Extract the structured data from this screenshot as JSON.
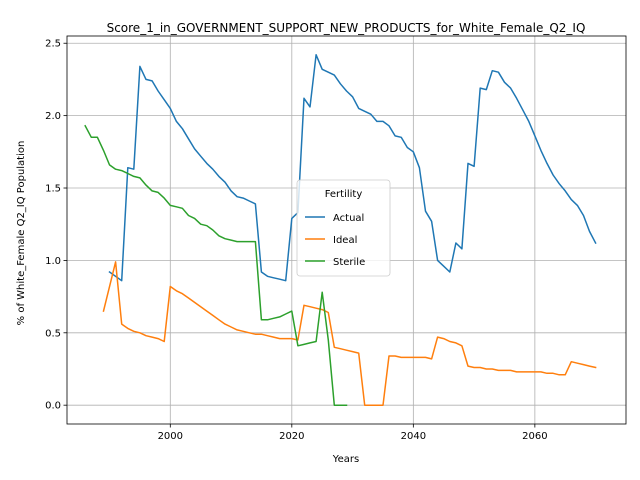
{
  "chart_data": {
    "type": "line",
    "title": "Score_1_in_GOVERNMENT_SUPPORT_NEW_PRODUCTS_for_White_Female_Q2_IQ",
    "xlabel": "Years",
    "ylabel": "% of White_Female Q2_IQ Population",
    "xlim": [
      1983,
      2075
    ],
    "ylim": [
      -0.13,
      2.55
    ],
    "xticks": [
      2000,
      2020,
      2040,
      2060
    ],
    "yticks": [
      0.0,
      0.5,
      1.0,
      1.5,
      2.0,
      2.5
    ],
    "xtick_labels": [
      "2000",
      "2020",
      "2040",
      "2060"
    ],
    "ytick_labels": [
      "0.0",
      "0.5",
      "1.0",
      "1.5",
      "2.0",
      "2.5"
    ],
    "grid": true,
    "legend": {
      "title": "Fertility",
      "placement": "center-right"
    },
    "series": [
      {
        "name": "Actual",
        "color": "#1f77b4",
        "x": [
          1990,
          1992,
          1993,
          1994,
          1995,
          1996,
          1997,
          1998,
          1999,
          2000,
          2001,
          2002,
          2003,
          2004,
          2005,
          2006,
          2007,
          2008,
          2009,
          2010,
          2011,
          2012,
          2013,
          2014,
          2015,
          2016,
          2017,
          2018,
          2019,
          2020,
          2021,
          2022,
          2023,
          2024,
          2025,
          2026,
          2027,
          2028,
          2029,
          2030,
          2031,
          2032,
          2033,
          2034,
          2035,
          2036,
          2037,
          2038,
          2039,
          2040,
          2041,
          2042,
          2043,
          2044,
          2045,
          2046,
          2047,
          2048,
          2049,
          2050,
          2051,
          2052,
          2053,
          2054,
          2055,
          2056,
          2057,
          2058,
          2059,
          2060,
          2061,
          2062,
          2063,
          2064,
          2065,
          2066,
          2067,
          2068,
          2069,
          2070
        ],
        "y": [
          0.92,
          0.86,
          1.64,
          1.63,
          2.34,
          2.25,
          2.24,
          2.17,
          2.11,
          2.05,
          1.96,
          1.91,
          1.84,
          1.77,
          1.72,
          1.67,
          1.63,
          1.58,
          1.54,
          1.48,
          1.44,
          1.43,
          1.41,
          1.39,
          0.92,
          0.89,
          0.88,
          0.87,
          0.86,
          1.29,
          1.33,
          2.12,
          2.06,
          2.42,
          2.32,
          2.3,
          2.28,
          2.22,
          2.17,
          2.13,
          2.05,
          2.03,
          2.01,
          1.96,
          1.96,
          1.93,
          1.86,
          1.85,
          1.78,
          1.75,
          1.64,
          1.34,
          1.27,
          1.0,
          0.96,
          0.92,
          1.12,
          1.08,
          1.67,
          1.65,
          2.19,
          2.18,
          2.31,
          2.3,
          2.23,
          2.19,
          2.12,
          2.04,
          1.96,
          1.86,
          1.76,
          1.67,
          1.59,
          1.53,
          1.48,
          1.42,
          1.38,
          1.31,
          1.2,
          1.12
        ]
      },
      {
        "name": "Ideal",
        "color": "#ff7f0e",
        "x": [
          1989,
          1991,
          1992,
          1993,
          1994,
          1995,
          1996,
          1997,
          1998,
          1999,
          2000,
          2001,
          2002,
          2003,
          2004,
          2005,
          2006,
          2007,
          2008,
          2009,
          2010,
          2011,
          2012,
          2013,
          2014,
          2015,
          2016,
          2017,
          2018,
          2019,
          2020,
          2021,
          2022,
          2023,
          2024,
          2025,
          2026,
          2027,
          2028,
          2029,
          2030,
          2031,
          2032,
          2033,
          2034,
          2035,
          2036,
          2037,
          2038,
          2039,
          2040,
          2041,
          2042,
          2043,
          2044,
          2045,
          2046,
          2047,
          2048,
          2049,
          2050,
          2051,
          2052,
          2053,
          2054,
          2055,
          2056,
          2057,
          2058,
          2059,
          2060,
          2061,
          2062,
          2063,
          2064,
          2065,
          2066,
          2067,
          2068,
          2069,
          2070
        ],
        "y": [
          0.65,
          0.99,
          0.56,
          0.53,
          0.51,
          0.5,
          0.48,
          0.47,
          0.46,
          0.44,
          0.82,
          0.79,
          0.77,
          0.74,
          0.71,
          0.68,
          0.65,
          0.62,
          0.59,
          0.56,
          0.54,
          0.52,
          0.51,
          0.5,
          0.49,
          0.49,
          0.48,
          0.47,
          0.46,
          0.46,
          0.46,
          0.45,
          0.69,
          0.68,
          0.67,
          0.66,
          0.64,
          0.4,
          0.39,
          0.38,
          0.37,
          0.36,
          0.0,
          0.0,
          0.0,
          0.0,
          0.34,
          0.34,
          0.33,
          0.33,
          0.33,
          0.33,
          0.33,
          0.32,
          0.47,
          0.46,
          0.44,
          0.43,
          0.41,
          0.27,
          0.26,
          0.26,
          0.25,
          0.25,
          0.24,
          0.24,
          0.24,
          0.23,
          0.23,
          0.23,
          0.23,
          0.23,
          0.22,
          0.22,
          0.21,
          0.21,
          0.3,
          0.29,
          0.28,
          0.27,
          0.26
        ]
      },
      {
        "name": "Sterile",
        "color": "#2ca02c",
        "x": [
          1986,
          1987,
          1988,
          1989,
          1990,
          1991,
          1992,
          1993,
          1994,
          1995,
          1996,
          1997,
          1998,
          1999,
          2000,
          2001,
          2002,
          2003,
          2004,
          2005,
          2006,
          2007,
          2008,
          2009,
          2010,
          2011,
          2012,
          2013,
          2014,
          2015,
          2016,
          2017,
          2018,
          2019,
          2020,
          2021,
          2022,
          2023,
          2024,
          2025,
          2026,
          2027,
          2028,
          2029
        ],
        "y": [
          1.93,
          1.85,
          1.85,
          1.76,
          1.66,
          1.63,
          1.62,
          1.6,
          1.58,
          1.57,
          1.52,
          1.48,
          1.47,
          1.43,
          1.38,
          1.37,
          1.36,
          1.31,
          1.29,
          1.25,
          1.24,
          1.21,
          1.17,
          1.15,
          1.14,
          1.13,
          1.13,
          1.13,
          1.13,
          0.59,
          0.59,
          0.6,
          0.61,
          0.63,
          0.65,
          0.41,
          0.42,
          0.43,
          0.44,
          0.78,
          0.45,
          0.0,
          0.0,
          0.0
        ]
      }
    ]
  }
}
